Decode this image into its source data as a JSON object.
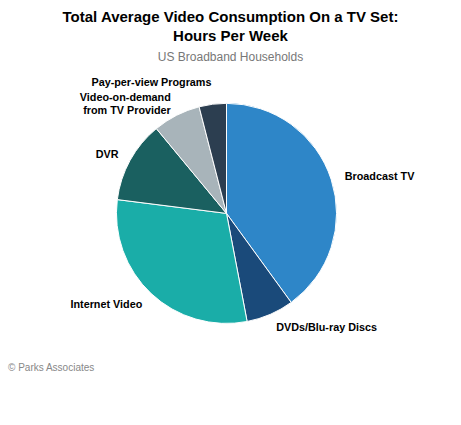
{
  "chart_data": {
    "type": "pie",
    "title": "Total Average Video Consumption On a TV Set:\nHours Per Week",
    "subtitle": "US Broadband Households",
    "categories": [
      "Broadcast TV",
      "DVDs/Blu-ray Discs",
      "Internet Video",
      "DVR",
      "Video-on-demand\nfrom TV Provider",
      "Pay-per-view Programs"
    ],
    "values": [
      40,
      7,
      30,
      12,
      7,
      4
    ],
    "colors": [
      "#2E86C8",
      "#1A4A7A",
      "#1AADA8",
      "#1A6060",
      "#A8B4BA",
      "#2C3E50"
    ],
    "annotations": [
      "© Parks Associates"
    ]
  }
}
